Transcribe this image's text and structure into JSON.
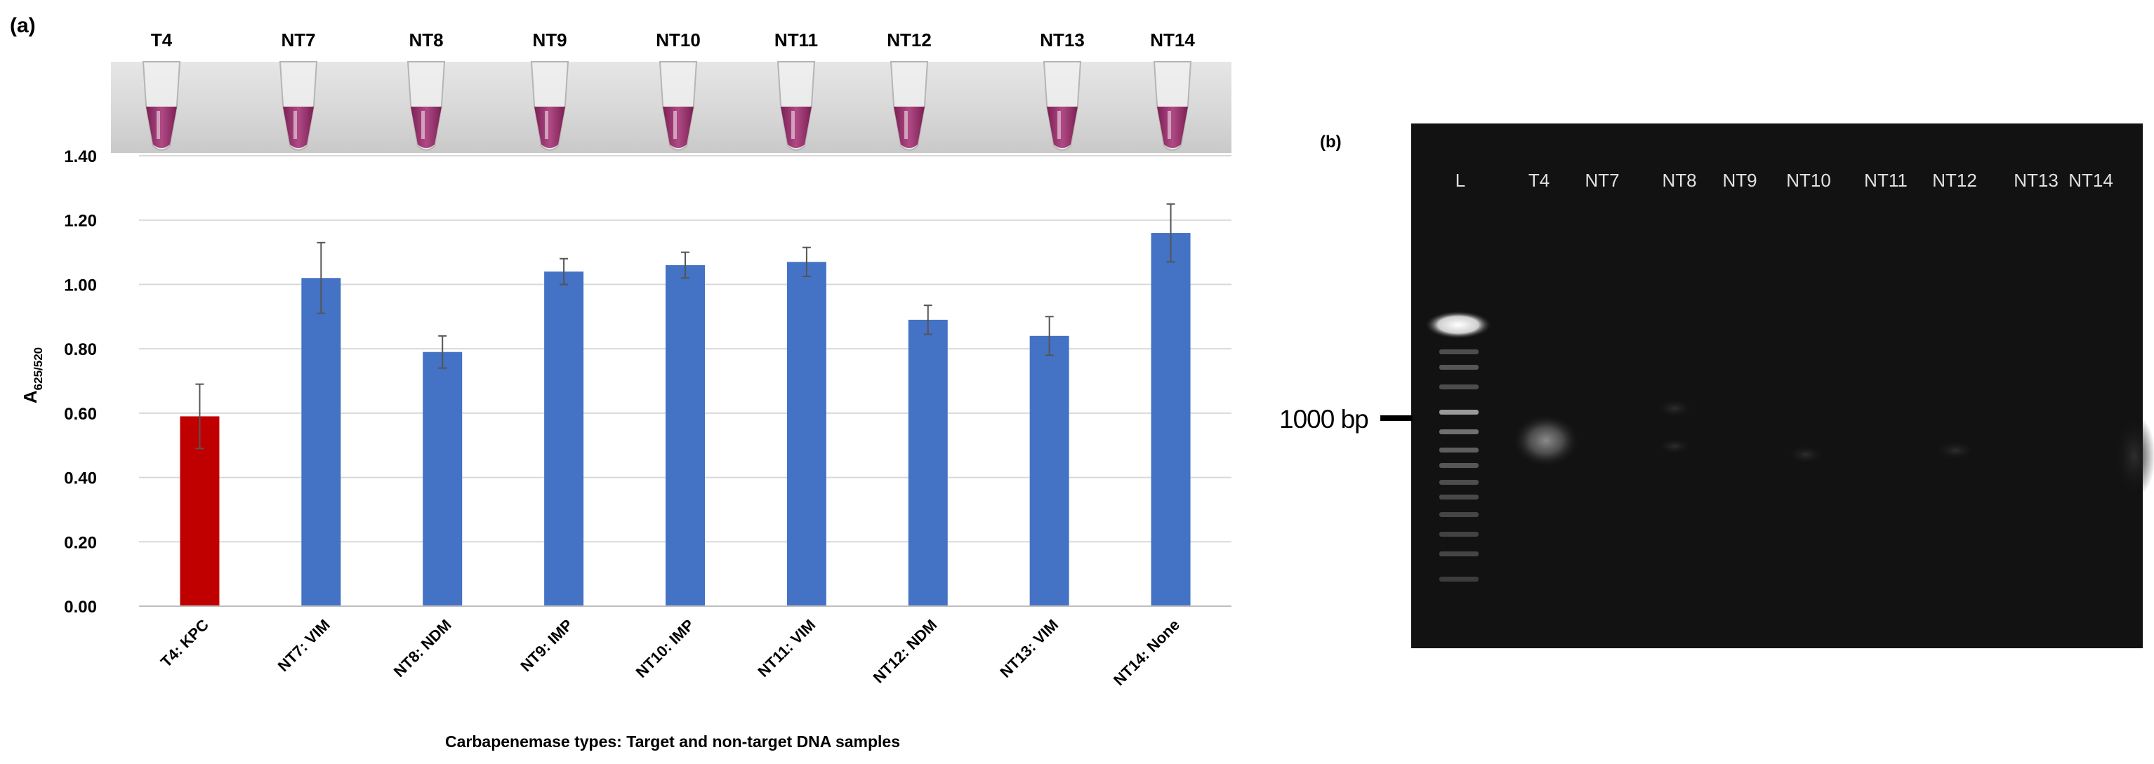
{
  "panel_a": {
    "label": "(a)",
    "tube_labels": [
      "T4",
      "NT7",
      "NT8",
      "NT9",
      "NT10",
      "NT11",
      "NT12",
      "NT13",
      "NT14"
    ]
  },
  "panel_b": {
    "label": "(b)",
    "lane_labels": [
      "L",
      "T4",
      "NT7",
      "NT8",
      "NT9",
      "NT10",
      "NT11",
      "NT12",
      "NT13",
      "NT14"
    ],
    "marker_label": "1000 bp"
  },
  "chart_data": {
    "type": "bar",
    "title": "",
    "xlabel": "Carbapenemase types: Target and non-target DNA samples",
    "ylabel_main": "A",
    "ylabel_sub": "625/520",
    "categories": [
      "T4: KPC",
      "NT7: VIM",
      "NT8: NDM",
      "NT9: IMP",
      "NT10: IMP",
      "NT11: VIM",
      "NT12: NDM",
      "NT13: VIM",
      "NT14: None"
    ],
    "values": [
      0.59,
      1.02,
      0.79,
      1.04,
      1.06,
      1.07,
      0.89,
      0.84,
      1.16
    ],
    "errors": [
      0.1,
      0.11,
      0.05,
      0.04,
      0.04,
      0.045,
      0.045,
      0.06,
      0.09
    ],
    "bar_colors": [
      "#C00000",
      "#4472C4",
      "#4472C4",
      "#4472C4",
      "#4472C4",
      "#4472C4",
      "#4472C4",
      "#4472C4",
      "#4472C4"
    ],
    "ylim": [
      0,
      1.4
    ],
    "yticks": [
      "0.00",
      "0.20",
      "0.40",
      "0.60",
      "0.80",
      "1.00",
      "1.20",
      "1.40"
    ],
    "grid": true
  }
}
